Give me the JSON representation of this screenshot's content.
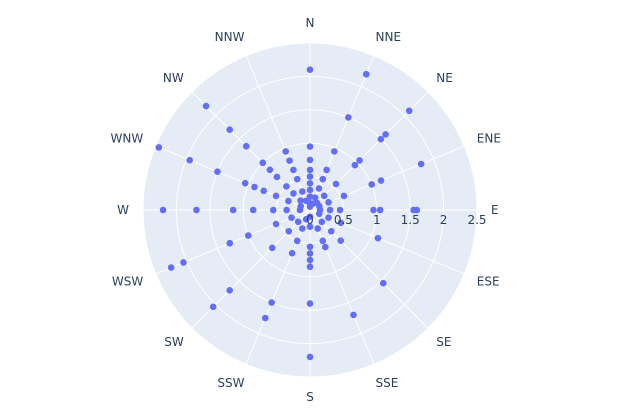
{
  "chart_data": {
    "type": "scatter",
    "coordinate_system": "polar",
    "angular_axis": {
      "categories": [
        "N",
        "NNE",
        "NE",
        "ENE",
        "E",
        "ESE",
        "SE",
        "SSE",
        "S",
        "SSW",
        "SW",
        "WSW",
        "W",
        "WNW",
        "NW",
        "NNW"
      ],
      "direction": "clockwise",
      "rotation": "N at top"
    },
    "radial_axis": {
      "range": [
        0,
        2.5
      ],
      "ticks": [
        0,
        0.5,
        1,
        1.5,
        2,
        2.5
      ],
      "tick_labels": [
        "0",
        "0.5",
        "1",
        "1.5",
        "2",
        "2.5"
      ],
      "angle": "E"
    },
    "marker_color": "#636efa",
    "background_color": "#e5ecf6",
    "grid_color": "#ffffff",
    "label_color": "#2a3f5f",
    "grid": true,
    "legend": false,
    "points": [
      {
        "dir": "N",
        "r": 2.1
      },
      {
        "dir": "N",
        "r": 0.95
      },
      {
        "dir": "N",
        "r": 0.75
      },
      {
        "dir": "N",
        "r": 0.6
      },
      {
        "dir": "N",
        "r": 0.5
      },
      {
        "dir": "N",
        "r": 0.4
      },
      {
        "dir": "N",
        "r": 0.3
      },
      {
        "dir": "N",
        "r": 0.2
      },
      {
        "dir": "N",
        "r": 0.1
      },
      {
        "dir": "N",
        "r": 0.05
      },
      {
        "dir": "NNE",
        "r": 2.2
      },
      {
        "dir": "NNE",
        "r": 1.5
      },
      {
        "dir": "NNE",
        "r": 0.95
      },
      {
        "dir": "NNE",
        "r": 0.65
      },
      {
        "dir": "NNE",
        "r": 0.5
      },
      {
        "dir": "NNE",
        "r": 0.35
      },
      {
        "dir": "NNE",
        "r": 0.2
      },
      {
        "dir": "NNE",
        "r": 0.1
      },
      {
        "dir": "NE",
        "r": 2.1
      },
      {
        "dir": "NE",
        "r": 1.6
      },
      {
        "dir": "NE",
        "r": 1.5
      },
      {
        "dir": "NE",
        "r": 1.05
      },
      {
        "dir": "NE",
        "r": 0.95
      },
      {
        "dir": "NE",
        "r": 0.55
      },
      {
        "dir": "NE",
        "r": 0.3
      },
      {
        "dir": "NE",
        "r": 0.15
      },
      {
        "dir": "ENE",
        "r": 1.8
      },
      {
        "dir": "ENE",
        "r": 1.15
      },
      {
        "dir": "ENE",
        "r": 1.0
      },
      {
        "dir": "ENE",
        "r": 0.55
      },
      {
        "dir": "ENE",
        "r": 0.3
      },
      {
        "dir": "ENE",
        "r": 0.15
      },
      {
        "dir": "E",
        "r": 1.6
      },
      {
        "dir": "E",
        "r": 1.55
      },
      {
        "dir": "E",
        "r": 1.05
      },
      {
        "dir": "E",
        "r": 0.95
      },
      {
        "dir": "E",
        "r": 0.45
      },
      {
        "dir": "E",
        "r": 0.3
      },
      {
        "dir": "E",
        "r": 0.15
      },
      {
        "dir": "ESE",
        "r": 1.1
      },
      {
        "dir": "ESE",
        "r": 0.5
      },
      {
        "dir": "ESE",
        "r": 0.3
      },
      {
        "dir": "ESE",
        "r": 0.15
      },
      {
        "dir": "SE",
        "r": 1.55
      },
      {
        "dir": "SE",
        "r": 0.65
      },
      {
        "dir": "SE",
        "r": 0.45
      },
      {
        "dir": "SE",
        "r": 0.25
      },
      {
        "dir": "SSE",
        "r": 1.7
      },
      {
        "dir": "SSE",
        "r": 0.6
      },
      {
        "dir": "SSE",
        "r": 0.5
      },
      {
        "dir": "SSE",
        "r": 0.3
      },
      {
        "dir": "S",
        "r": 2.2
      },
      {
        "dir": "S",
        "r": 1.4
      },
      {
        "dir": "S",
        "r": 0.85
      },
      {
        "dir": "S",
        "r": 0.75
      },
      {
        "dir": "S",
        "r": 0.65
      },
      {
        "dir": "S",
        "r": 0.55
      },
      {
        "dir": "S",
        "r": 0.25
      },
      {
        "dir": "S",
        "r": 0.1
      },
      {
        "dir": "SSW",
        "r": 1.75
      },
      {
        "dir": "SSW",
        "r": 1.5
      },
      {
        "dir": "SSW",
        "r": 0.7
      },
      {
        "dir": "SSW",
        "r": 0.5
      },
      {
        "dir": "SSW",
        "r": 0.3
      },
      {
        "dir": "SSW",
        "r": 0.15
      },
      {
        "dir": "SW",
        "r": 2.05
      },
      {
        "dir": "SW",
        "r": 1.7
      },
      {
        "dir": "SW",
        "r": 0.8
      },
      {
        "dir": "SW",
        "r": 0.45
      },
      {
        "dir": "SW",
        "r": 0.25
      },
      {
        "dir": "WSW",
        "r": 2.25
      },
      {
        "dir": "WSW",
        "r": 2.05
      },
      {
        "dir": "WSW",
        "r": 1.3
      },
      {
        "dir": "WSW",
        "r": 1.0
      },
      {
        "dir": "WSW",
        "r": 0.55
      },
      {
        "dir": "WSW",
        "r": 0.3
      },
      {
        "dir": "W",
        "r": 2.2
      },
      {
        "dir": "W",
        "r": 1.7
      },
      {
        "dir": "W",
        "r": 1.15
      },
      {
        "dir": "W",
        "r": 0.85
      },
      {
        "dir": "W",
        "r": 0.55
      },
      {
        "dir": "W",
        "r": 0.35
      },
      {
        "dir": "W",
        "r": 0.15
      },
      {
        "dir": "WNW",
        "r": 2.45
      },
      {
        "dir": "WNW",
        "r": 1.95
      },
      {
        "dir": "WNW",
        "r": 1.5
      },
      {
        "dir": "WNW",
        "r": 1.05
      },
      {
        "dir": "WNW",
        "r": 0.9
      },
      {
        "dir": "WNW",
        "r": 0.75
      },
      {
        "dir": "WNW",
        "r": 0.55
      },
      {
        "dir": "WNW",
        "r": 0.35
      },
      {
        "dir": "WNW",
        "r": 0.15
      },
      {
        "dir": "NW",
        "r": 2.2
      },
      {
        "dir": "NW",
        "r": 1.7
      },
      {
        "dir": "NW",
        "r": 1.35
      },
      {
        "dir": "NW",
        "r": 1.0
      },
      {
        "dir": "NW",
        "r": 0.85
      },
      {
        "dir": "NW",
        "r": 0.7
      },
      {
        "dir": "NW",
        "r": 0.5
      },
      {
        "dir": "NW",
        "r": 0.35
      },
      {
        "dir": "NW",
        "r": 0.2
      },
      {
        "dir": "NNW",
        "r": 0.95
      },
      {
        "dir": "NNW",
        "r": 0.8
      },
      {
        "dir": "NNW",
        "r": 0.65
      },
      {
        "dir": "NNW",
        "r": 0.5
      },
      {
        "dir": "NNW",
        "r": 0.3
      },
      {
        "dir": "NNW",
        "r": 0.15
      }
    ]
  }
}
